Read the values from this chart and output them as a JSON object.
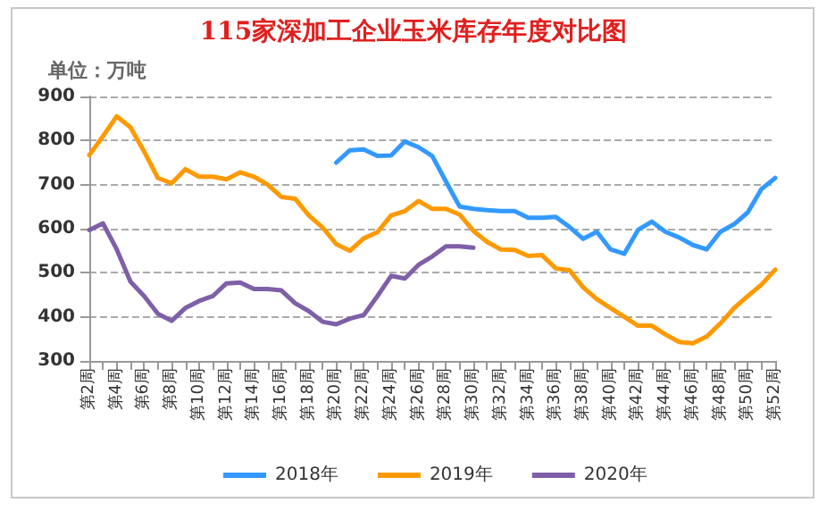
{
  "chart_data": {
    "type": "line",
    "title": "115家深加工企业玉米库存年度对比图",
    "ylabel": "单位：万吨",
    "categories": [
      "第2周",
      null,
      "第4周",
      null,
      "第6周",
      null,
      "第8周",
      null,
      "第10周",
      null,
      "第12周",
      null,
      "第14周",
      null,
      "第16周",
      null,
      "第18周",
      null,
      "第20周",
      null,
      "第22周",
      null,
      "第24周",
      null,
      "第26周",
      null,
      "第28周",
      null,
      "第30周",
      null,
      "第32周",
      null,
      "第34周",
      null,
      "第36周",
      null,
      "第38周",
      null,
      "第40周",
      null,
      "第42周",
      null,
      "第44周",
      null,
      "第46周",
      null,
      "第48周",
      null,
      "第50周",
      null,
      "第52周"
    ],
    "series": [
      {
        "name": "2018年",
        "color": "#3399ff",
        "values": [
          null,
          null,
          null,
          null,
          null,
          null,
          null,
          null,
          null,
          null,
          null,
          null,
          null,
          null,
          null,
          null,
          null,
          null,
          750,
          778,
          780,
          765,
          766,
          798,
          785,
          765,
          707,
          650,
          645,
          642,
          640,
          640,
          625,
          625,
          627,
          604,
          577,
          593,
          553,
          543,
          597,
          616,
          593,
          580,
          563,
          553,
          593,
          610,
          637,
          690,
          715
        ]
      },
      {
        "name": "2019年",
        "color": "#ff9900",
        "values": [
          767,
          810,
          855,
          830,
          775,
          715,
          703,
          735,
          718,
          718,
          712,
          728,
          718,
          700,
          672,
          668,
          630,
          603,
          565,
          550,
          578,
          592,
          630,
          640,
          663,
          645,
          645,
          632,
          595,
          570,
          553,
          552,
          538,
          540,
          510,
          506,
          467,
          440,
          420,
          400,
          380,
          380,
          360,
          343,
          340,
          355,
          385,
          420,
          447,
          473,
          507
        ]
      },
      {
        "name": "2020年",
        "color": "#7f5fa8",
        "values": [
          597,
          612,
          553,
          480,
          447,
          407,
          391,
          420,
          436,
          447,
          476,
          478,
          463,
          463,
          460,
          431,
          413,
          389,
          383,
          396,
          404,
          447,
          493,
          487,
          518,
          537,
          560,
          560,
          557,
          null,
          null,
          null,
          null,
          null,
          null,
          null,
          null,
          null,
          null,
          null,
          null,
          null,
          null,
          null,
          null,
          null,
          null,
          null,
          null,
          null,
          null
        ]
      }
    ],
    "ylim": [
      300,
      900
    ],
    "yticks": [
      300,
      400,
      500,
      600,
      700,
      800,
      900
    ],
    "grid": "y",
    "legend": "bottom",
    "marker": "none",
    "line_style": "solid"
  }
}
